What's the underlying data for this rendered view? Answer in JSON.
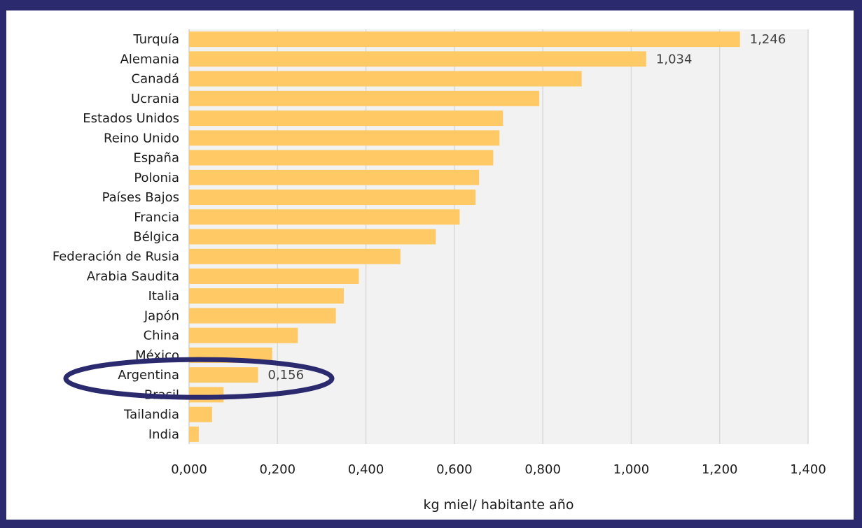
{
  "chart_data": {
    "type": "bar",
    "orientation": "horizontal",
    "categories": [
      "Turquía",
      "Alemania",
      "Canadá",
      "Ucrania",
      "Estados Unidos",
      "Reino Unido",
      "España",
      "Polonia",
      "Países Bajos",
      "Francia",
      "Bélgica",
      "Federación de Rusia",
      "Arabia Saudita",
      "Italia",
      "Japón",
      "China",
      "México",
      "Argentina",
      "Brasil",
      "Tailandia",
      "India"
    ],
    "values": [
      1.246,
      1.034,
      0.888,
      0.792,
      0.71,
      0.702,
      0.688,
      0.656,
      0.648,
      0.612,
      0.558,
      0.478,
      0.384,
      0.35,
      0.332,
      0.246,
      0.188,
      0.156,
      0.078,
      0.052,
      0.022
    ],
    "data_labels": {
      "Turquía": "1,246",
      "Alemania": "1,034",
      "Argentina": "0,156"
    },
    "xlabel": "kg miel/ habitante año",
    "xlim": [
      0,
      1.4
    ],
    "x_ticks": [
      "0,000",
      "0,200",
      "0,400",
      "0,600",
      "0,800",
      "1,000",
      "1,200",
      "1,400"
    ],
    "grid": "vertical",
    "highlight": "Argentina",
    "colors": {
      "bar": "#ffc966",
      "plot_bg": "#f2f2f2",
      "grid": "#d9d9d9",
      "highlight_ellipse": "#2b2a6e"
    }
  }
}
